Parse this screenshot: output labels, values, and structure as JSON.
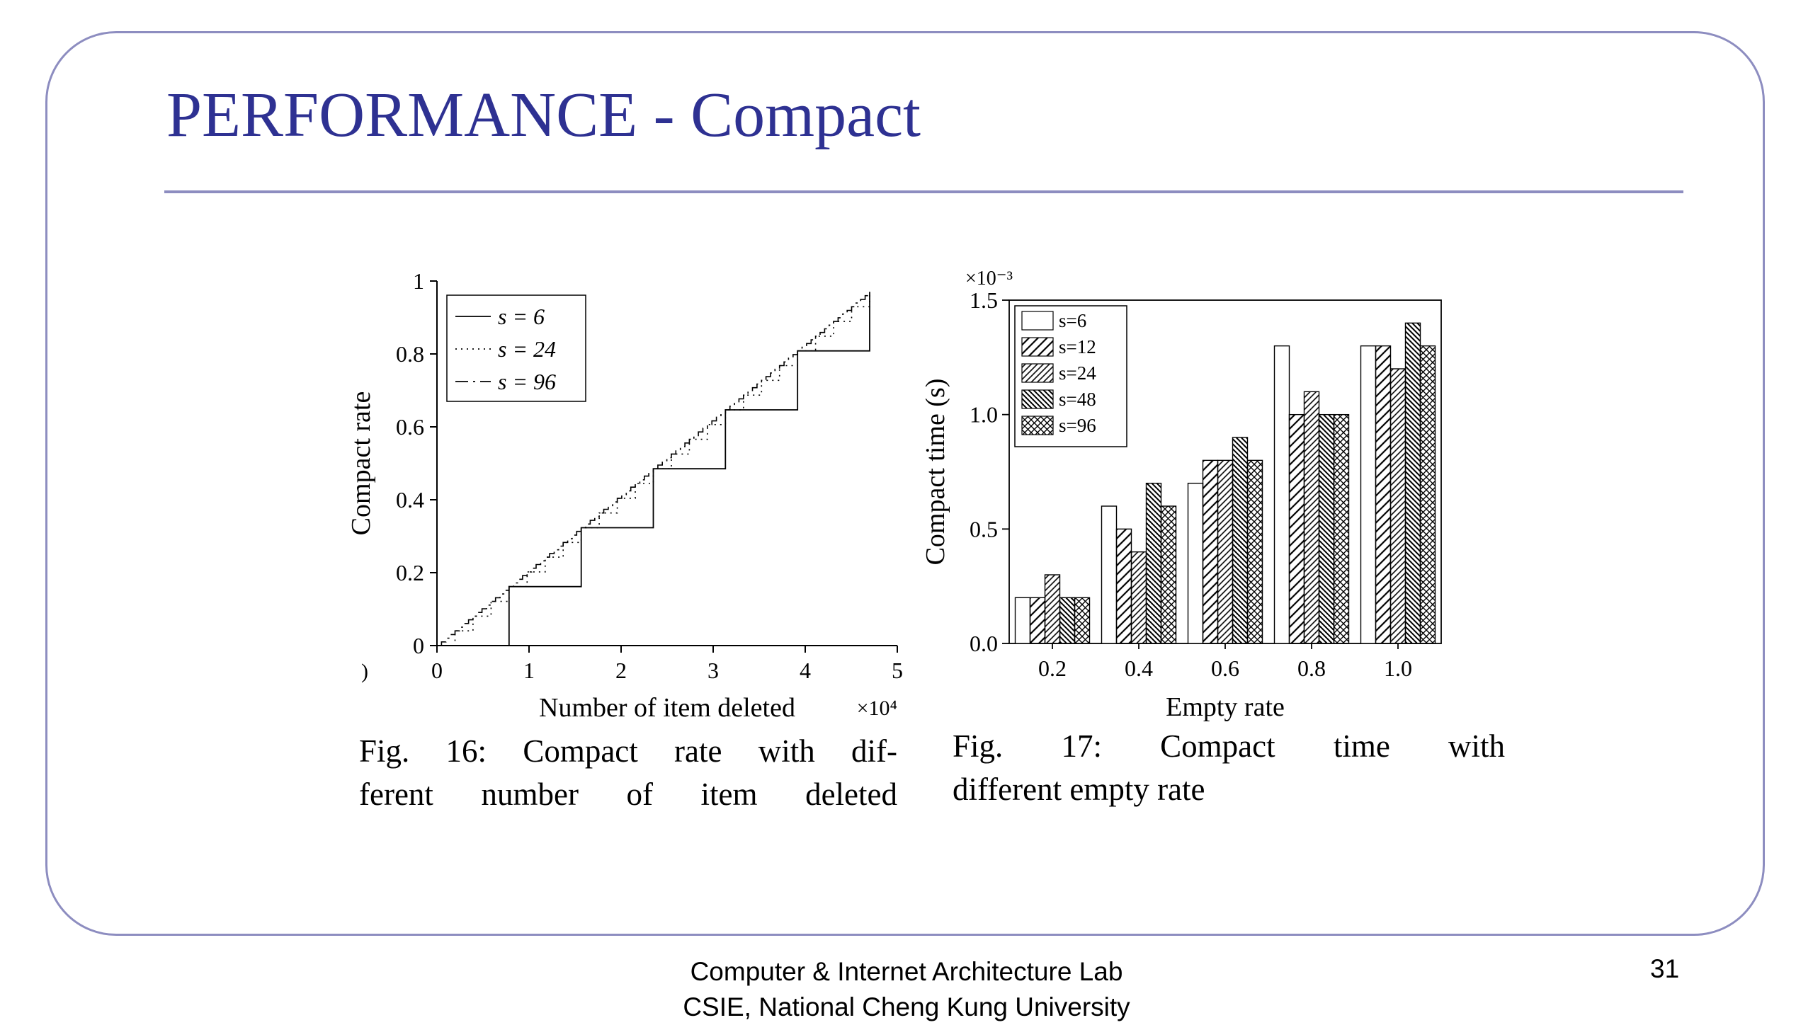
{
  "colors": {
    "title": "#2e3192",
    "frame": "#8d8dc0"
  },
  "slide": {
    "title": "PERFORMANCE - Compact",
    "page_number": "31",
    "footer": {
      "line1": "Computer & Internet Architecture Lab",
      "line2": "CSIE, National Cheng Kung University"
    }
  },
  "fig16": {
    "caption_line1": "Fig. 16: Compact rate with dif-",
    "caption_line2": "ferent number of item deleted",
    "stray_character": ")"
  },
  "fig17": {
    "caption_line1": "Fig. 17: Compact time with",
    "caption_line2": "different empty rate"
  },
  "chart_data": [
    {
      "id": "fig16",
      "type": "line",
      "subtype": "staircase-step",
      "title": "",
      "xlabel": "Number of item deleted",
      "x_multiplier": "×10⁴",
      "ylabel": "Compact rate",
      "xlim": [
        0,
        5
      ],
      "ylim": [
        0,
        1
      ],
      "xticks": [
        0,
        1,
        2,
        3,
        4,
        5
      ],
      "yticks": [
        0,
        0.2,
        0.4,
        0.6,
        0.8,
        1
      ],
      "xtick_labels": [
        "0",
        "1",
        "2",
        "3",
        "4",
        "5"
      ],
      "ytick_labels": [
        "0",
        "0.2",
        "0.4",
        "0.6",
        "0.8",
        "1"
      ],
      "x_end": 4.7,
      "y_end": 0.97,
      "grid": false,
      "legend_position": "top-left",
      "series": [
        {
          "name": "s = 6",
          "line_style": "solid",
          "steps": 6
        },
        {
          "name": "s = 24",
          "line_style": "dotted",
          "steps": 24
        },
        {
          "name": "s = 96",
          "line_style": "dashdot",
          "steps": 96
        }
      ]
    },
    {
      "id": "fig17",
      "type": "bar",
      "title": "",
      "xlabel": "Empty rate",
      "ylabel": "Compact time (s)",
      "y_multiplier": "×10⁻³",
      "ylim": [
        0,
        1.5
      ],
      "yticks": [
        0,
        0.5,
        1,
        1.5
      ],
      "ytick_labels": [
        "0.0",
        "0.5",
        "1.0",
        "1.5"
      ],
      "categories": [
        "0.2",
        "0.4",
        "0.6",
        "0.8",
        "1.0"
      ],
      "grid": false,
      "legend_position": "top-left",
      "series": [
        {
          "name": "s=6",
          "pattern": "plain",
          "values": [
            0.2,
            0.6,
            0.7,
            1.3,
            1.3
          ]
        },
        {
          "name": "s=12",
          "pattern": "diag-right",
          "values": [
            0.2,
            0.5,
            0.8,
            1.0,
            1.3
          ]
        },
        {
          "name": "s=24",
          "pattern": "diag-right-dense",
          "values": [
            0.3,
            0.4,
            0.8,
            1.1,
            1.2
          ]
        },
        {
          "name": "s=48",
          "pattern": "diag-left-dense",
          "values": [
            0.2,
            0.7,
            0.9,
            1.0,
            1.4
          ]
        },
        {
          "name": "s=96",
          "pattern": "crosshatch",
          "values": [
            0.2,
            0.6,
            0.8,
            1.0,
            1.3
          ]
        }
      ]
    }
  ]
}
